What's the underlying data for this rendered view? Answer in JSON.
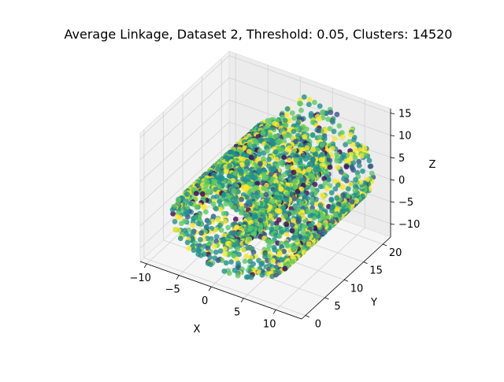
{
  "chart_data": {
    "type": "scatter",
    "title": "Average Linkage, Dataset 2, Threshold: 0.05, Clusters: 14520",
    "projection": "3d",
    "xlabel": "X",
    "ylabel": "Y",
    "zlabel": "Z",
    "xlim": [
      -11,
      14
    ],
    "ylim": [
      -1,
      22
    ],
    "zlim": [
      -13,
      16
    ],
    "xticks": [
      "−10",
      "−5",
      "0",
      "5",
      "10"
    ],
    "xtick_values": [
      -10,
      -5,
      0,
      5,
      10
    ],
    "yticks": [
      "0",
      "5",
      "10",
      "15",
      "20"
    ],
    "ytick_values": [
      0,
      5,
      10,
      15,
      20
    ],
    "zticks": [
      "−10",
      "−5",
      "0",
      "5",
      "10",
      "15"
    ],
    "ztick_values": [
      -10,
      -5,
      0,
      5,
      10,
      15
    ],
    "grid": true,
    "colormap": "viridis",
    "shape": "swiss roll",
    "roll_center": [
      1,
      0
    ],
    "y_range": [
      0,
      21
    ],
    "radius_range": [
      3,
      14
    ],
    "n_clusters": 14520,
    "colors": [
      "#440154",
      "#3b528b",
      "#21918c",
      "#5ec962",
      "#fde725"
    ]
  }
}
